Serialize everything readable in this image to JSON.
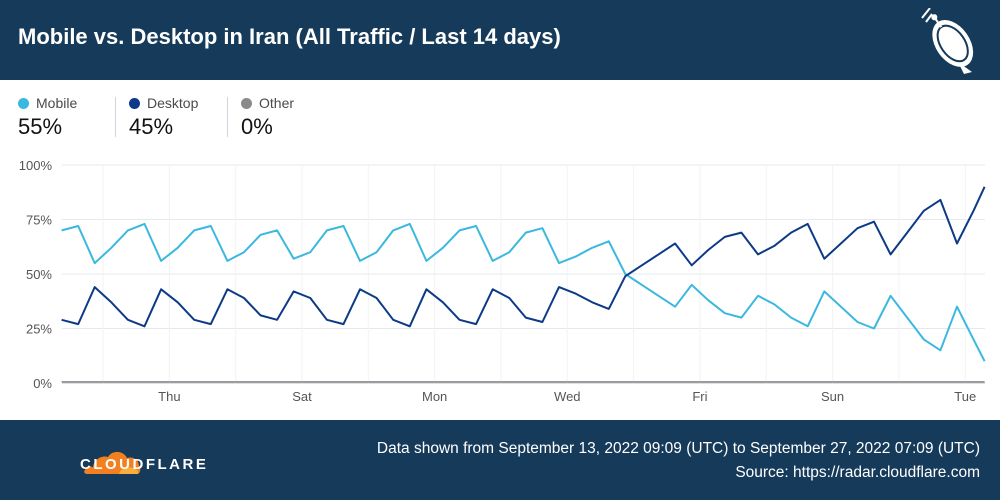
{
  "header": {
    "title": "Mobile vs. Desktop in Iran (All Traffic / Last 14 days)"
  },
  "legend": [
    {
      "label": "Mobile",
      "value": "55%",
      "color": "#3bb8e0"
    },
    {
      "label": "Desktop",
      "value": "45%",
      "color": "#0d3a87"
    },
    {
      "label": "Other",
      "value": "0%",
      "color": "#8a8a8a"
    }
  ],
  "footer": {
    "brand": "CLOUDFLARE",
    "range": "Data shown from September 13, 2022 09:09 (UTC) to September 27, 2022 07:09 (UTC)",
    "source": "Source: https://radar.cloudflare.com"
  },
  "chart_data": {
    "type": "line",
    "x_ticks": [
      "Thu",
      "Sat",
      "Mon",
      "Wed",
      "Fri",
      "Sun",
      "Tue"
    ],
    "y_ticks": [
      "0%",
      "25%",
      "50%",
      "75%",
      "100%"
    ],
    "ylim": [
      0,
      100
    ],
    "x_range": [
      "2022-09-13T09:09",
      "2022-09-27T07:09"
    ],
    "grid": true,
    "series": [
      {
        "name": "Mobile",
        "color": "#3bb8e0",
        "points": [
          [
            "2022-09-13T09:00",
            70
          ],
          [
            "2022-09-13T15:00",
            72
          ],
          [
            "2022-09-13T21:00",
            55
          ],
          [
            "2022-09-14T03:00",
            62
          ],
          [
            "2022-09-14T09:00",
            70
          ],
          [
            "2022-09-14T15:00",
            73
          ],
          [
            "2022-09-14T21:00",
            56
          ],
          [
            "2022-09-15T03:00",
            62
          ],
          [
            "2022-09-15T09:00",
            70
          ],
          [
            "2022-09-15T15:00",
            72
          ],
          [
            "2022-09-15T21:00",
            56
          ],
          [
            "2022-09-16T03:00",
            60
          ],
          [
            "2022-09-16T09:00",
            68
          ],
          [
            "2022-09-16T15:00",
            70
          ],
          [
            "2022-09-16T21:00",
            57
          ],
          [
            "2022-09-17T03:00",
            60
          ],
          [
            "2022-09-17T09:00",
            70
          ],
          [
            "2022-09-17T15:00",
            72
          ],
          [
            "2022-09-17T21:00",
            56
          ],
          [
            "2022-09-18T03:00",
            60
          ],
          [
            "2022-09-18T09:00",
            70
          ],
          [
            "2022-09-18T15:00",
            73
          ],
          [
            "2022-09-18T21:00",
            56
          ],
          [
            "2022-09-19T03:00",
            62
          ],
          [
            "2022-09-19T09:00",
            70
          ],
          [
            "2022-09-19T15:00",
            72
          ],
          [
            "2022-09-19T21:00",
            56
          ],
          [
            "2022-09-20T03:00",
            60
          ],
          [
            "2022-09-20T09:00",
            69
          ],
          [
            "2022-09-20T15:00",
            71
          ],
          [
            "2022-09-20T21:00",
            55
          ],
          [
            "2022-09-21T03:00",
            58
          ],
          [
            "2022-09-21T09:00",
            62
          ],
          [
            "2022-09-21T15:00",
            65
          ],
          [
            "2022-09-21T21:00",
            50
          ],
          [
            "2022-09-22T03:00",
            45
          ],
          [
            "2022-09-22T09:00",
            40
          ],
          [
            "2022-09-22T15:00",
            35
          ],
          [
            "2022-09-22T21:00",
            45
          ],
          [
            "2022-09-23T03:00",
            38
          ],
          [
            "2022-09-23T09:00",
            32
          ],
          [
            "2022-09-23T15:00",
            30
          ],
          [
            "2022-09-23T21:00",
            40
          ],
          [
            "2022-09-24T03:00",
            36
          ],
          [
            "2022-09-24T09:00",
            30
          ],
          [
            "2022-09-24T15:00",
            26
          ],
          [
            "2022-09-24T21:00",
            42
          ],
          [
            "2022-09-25T03:00",
            35
          ],
          [
            "2022-09-25T09:00",
            28
          ],
          [
            "2022-09-25T15:00",
            25
          ],
          [
            "2022-09-25T21:00",
            40
          ],
          [
            "2022-09-26T03:00",
            30
          ],
          [
            "2022-09-26T09:00",
            20
          ],
          [
            "2022-09-26T15:00",
            15
          ],
          [
            "2022-09-26T21:00",
            35
          ],
          [
            "2022-09-27T03:00",
            20
          ],
          [
            "2022-09-27T07:00",
            10
          ]
        ]
      },
      {
        "name": "Desktop",
        "color": "#0d3a87",
        "points": [
          [
            "2022-09-13T09:00",
            29
          ],
          [
            "2022-09-13T15:00",
            27
          ],
          [
            "2022-09-13T21:00",
            44
          ],
          [
            "2022-09-14T03:00",
            37
          ],
          [
            "2022-09-14T09:00",
            29
          ],
          [
            "2022-09-14T15:00",
            26
          ],
          [
            "2022-09-14T21:00",
            43
          ],
          [
            "2022-09-15T03:00",
            37
          ],
          [
            "2022-09-15T09:00",
            29
          ],
          [
            "2022-09-15T15:00",
            27
          ],
          [
            "2022-09-15T21:00",
            43
          ],
          [
            "2022-09-16T03:00",
            39
          ],
          [
            "2022-09-16T09:00",
            31
          ],
          [
            "2022-09-16T15:00",
            29
          ],
          [
            "2022-09-16T21:00",
            42
          ],
          [
            "2022-09-17T03:00",
            39
          ],
          [
            "2022-09-17T09:00",
            29
          ],
          [
            "2022-09-17T15:00",
            27
          ],
          [
            "2022-09-17T21:00",
            43
          ],
          [
            "2022-09-18T03:00",
            39
          ],
          [
            "2022-09-18T09:00",
            29
          ],
          [
            "2022-09-18T15:00",
            26
          ],
          [
            "2022-09-18T21:00",
            43
          ],
          [
            "2022-09-19T03:00",
            37
          ],
          [
            "2022-09-19T09:00",
            29
          ],
          [
            "2022-09-19T15:00",
            27
          ],
          [
            "2022-09-19T21:00",
            43
          ],
          [
            "2022-09-20T03:00",
            39
          ],
          [
            "2022-09-20T09:00",
            30
          ],
          [
            "2022-09-20T15:00",
            28
          ],
          [
            "2022-09-20T21:00",
            44
          ],
          [
            "2022-09-21T03:00",
            41
          ],
          [
            "2022-09-21T09:00",
            37
          ],
          [
            "2022-09-21T15:00",
            34
          ],
          [
            "2022-09-21T21:00",
            49
          ],
          [
            "2022-09-22T03:00",
            54
          ],
          [
            "2022-09-22T09:00",
            59
          ],
          [
            "2022-09-22T15:00",
            64
          ],
          [
            "2022-09-22T21:00",
            54
          ],
          [
            "2022-09-23T03:00",
            61
          ],
          [
            "2022-09-23T09:00",
            67
          ],
          [
            "2022-09-23T15:00",
            69
          ],
          [
            "2022-09-23T21:00",
            59
          ],
          [
            "2022-09-24T03:00",
            63
          ],
          [
            "2022-09-24T09:00",
            69
          ],
          [
            "2022-09-24T15:00",
            73
          ],
          [
            "2022-09-24T21:00",
            57
          ],
          [
            "2022-09-25T03:00",
            64
          ],
          [
            "2022-09-25T09:00",
            71
          ],
          [
            "2022-09-25T15:00",
            74
          ],
          [
            "2022-09-25T21:00",
            59
          ],
          [
            "2022-09-26T03:00",
            69
          ],
          [
            "2022-09-26T09:00",
            79
          ],
          [
            "2022-09-26T15:00",
            84
          ],
          [
            "2022-09-26T21:00",
            64
          ],
          [
            "2022-09-27T03:00",
            79
          ],
          [
            "2022-09-27T07:00",
            90
          ]
        ]
      },
      {
        "name": "Other",
        "color": "#8a8a8a",
        "points": [
          [
            "2022-09-13T09:00",
            0.5
          ],
          [
            "2022-09-27T07:00",
            0.5
          ]
        ]
      }
    ]
  }
}
